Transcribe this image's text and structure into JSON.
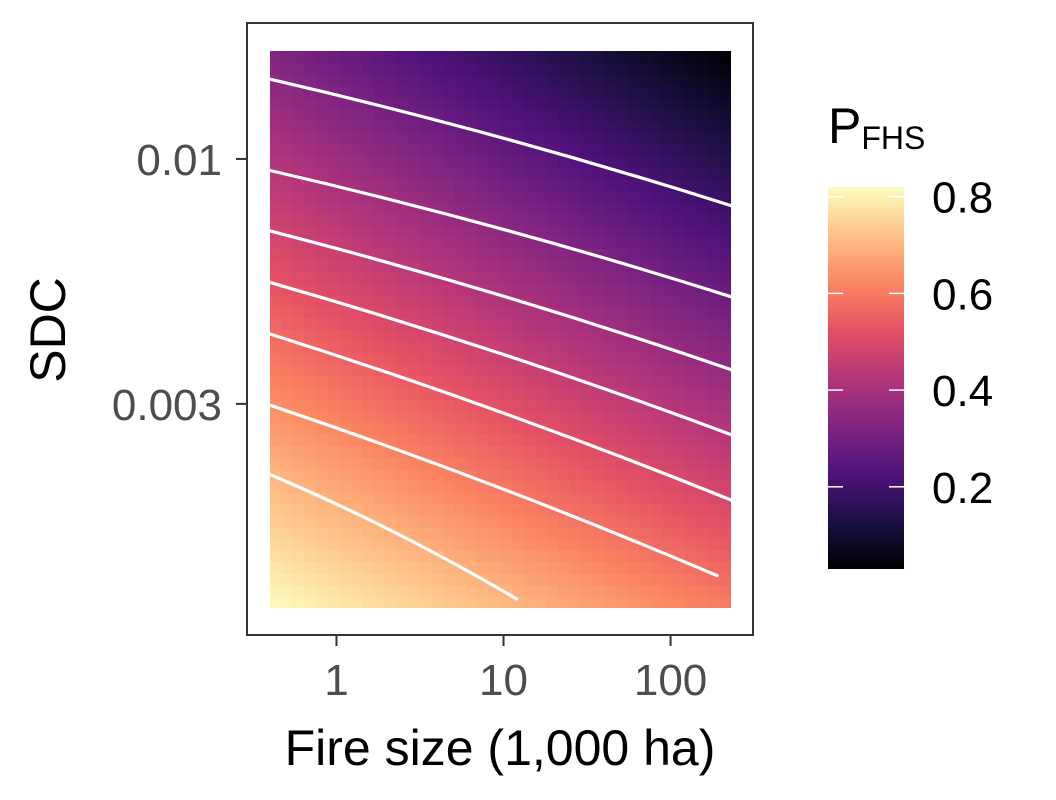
{
  "chart_data": {
    "type": "heatmap",
    "title": "",
    "xlabel": "Fire size (1,000 ha)",
    "ylabel": "SDC",
    "x_scale": "log",
    "y_scale": "log",
    "xlim": [
      0.4,
      230
    ],
    "ylim": [
      0.0011,
      0.017
    ],
    "x_ticks": [
      {
        "value": 1,
        "label": "1"
      },
      {
        "value": 10,
        "label": "10"
      },
      {
        "value": 100,
        "label": "100"
      }
    ],
    "y_ticks": [
      {
        "value": 0.003,
        "label": "0.003"
      },
      {
        "value": 0.01,
        "label": "0.01"
      }
    ],
    "grid": false,
    "palette": "magma",
    "colorbar": {
      "title_main": "P",
      "title_sub": "FHS",
      "range": [
        0.03,
        0.82
      ],
      "ticks": [
        {
          "value": 0.2,
          "label": "0.2"
        },
        {
          "value": 0.4,
          "label": "0.4"
        },
        {
          "value": 0.6,
          "label": "0.6"
        },
        {
          "value": 0.8,
          "label": "0.8"
        }
      ],
      "placement": "right"
    },
    "color_stops": [
      "#000004",
      "#1c1044",
      "#4f127b",
      "#812581",
      "#b5367a",
      "#e55064",
      "#fb8761",
      "#fec287",
      "#fcfdbf"
    ],
    "contour_color": "#ffffff",
    "contours": [
      {
        "points": [
          [
            0.4,
            0.0148
          ],
          [
            230,
            0.00795
          ]
        ]
      },
      {
        "points": [
          [
            0.4,
            0.00945
          ],
          [
            230,
            0.00508
          ]
        ]
      },
      {
        "points": [
          [
            0.4,
            0.00702
          ],
          [
            230,
            0.00355
          ]
        ]
      },
      {
        "points": [
          [
            0.4,
            0.00545
          ],
          [
            230,
            0.00258
          ]
        ]
      },
      {
        "points": [
          [
            0.4,
            0.00423
          ],
          [
            230,
            0.00187
          ]
        ]
      },
      {
        "points": [
          [
            0.4,
            0.00298
          ],
          [
            190,
            0.00129
          ]
        ]
      },
      {
        "points": [
          [
            0.4,
            0.00212
          ],
          [
            12,
            0.00115
          ]
        ]
      }
    ]
  }
}
